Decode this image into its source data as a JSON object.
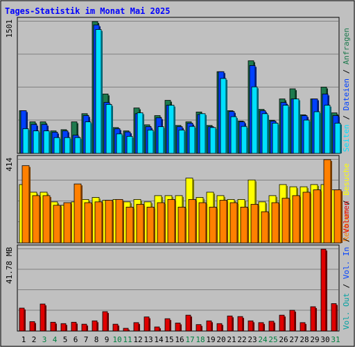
{
  "chart_data": {
    "type": "bar",
    "title": "Tages-Statistik im Monat Mai 2025",
    "days": [
      "1",
      "2",
      "3",
      "4",
      "5",
      "6",
      "7",
      "8",
      "9",
      "10",
      "11",
      "12",
      "13",
      "14",
      "15",
      "16",
      "17",
      "18",
      "19",
      "20",
      "21",
      "22",
      "23",
      "24",
      "25",
      "26",
      "27",
      "28",
      "29",
      "30",
      "31"
    ],
    "weekend_days": [
      "3",
      "4",
      "10",
      "11",
      "17",
      "18",
      "24",
      "25",
      "31"
    ],
    "panels": [
      {
        "id": "requests",
        "ylim": [
          0,
          1501
        ],
        "max_label": "1501",
        "legend": [
          {
            "text": "Anfragen",
            "color": "#1e7a4e"
          },
          {
            "text": "Dateien",
            "color": "#0040ff"
          },
          {
            "text": "Seiten",
            "color": "#00e0ff"
          }
        ],
        "series": [
          {
            "name": "Anfragen",
            "color": "#1e7a4e",
            "values": [
              486,
              359,
              359,
              256,
              270,
              359,
              452,
              1501,
              676,
              294,
              256,
              517,
              325,
              430,
              604,
              318,
              359,
              471,
              318,
              930,
              486,
              367,
              1054,
              501,
              377,
              620,
              735,
              439,
              620,
              755,
              461
            ]
          },
          {
            "name": "Dateien",
            "color": "#0040ff",
            "values": [
              486,
              330,
              330,
              241,
              256,
              207,
              430,
              1462,
              580,
              281,
              244,
              452,
              304,
              405,
              548,
              304,
              344,
              443,
              304,
              930,
              477,
              359,
              1000,
              486,
              367,
              580,
              620,
              430,
              620,
              676,
              430
            ]
          },
          {
            "name": "Seiten",
            "color": "#00e0ff",
            "values": [
              281,
              256,
              256,
              180,
              180,
              180,
              359,
              1410,
              557,
              222,
              194,
              462,
              266,
              304,
              548,
              266,
              307,
              452,
              294,
              853,
              418,
              307,
              757,
              452,
              344,
              548,
              620,
              379,
              474,
              548,
              344
            ]
          }
        ]
      },
      {
        "id": "visits",
        "ylim": [
          0,
          414
        ],
        "max_label": "414",
        "legend": [
          {
            "text": "Besuche",
            "color": "#ffff00"
          },
          {
            "text": "Rechner",
            "color": "#ff8000"
          }
        ],
        "series": [
          {
            "name": "Besuche",
            "color": "#ffff00",
            "values": [
              290,
              252,
              252,
              204,
              187,
              204,
              216,
              226,
              212,
              216,
              204,
              216,
              204,
              235,
              235,
              235,
              322,
              226,
              252,
              235,
              216,
              216,
              313,
              204,
              235,
              290,
              279,
              279,
              290,
              290,
              264
            ]
          },
          {
            "name": "Rechner",
            "color": "#ff8000",
            "values": [
              384,
              235,
              235,
              187,
              200,
              293,
              200,
              204,
              212,
              216,
              178,
              192,
              178,
              200,
              216,
              178,
              216,
              200,
              178,
              212,
              200,
              178,
              192,
              155,
              200,
              222,
              235,
              252,
              264,
              414,
              264
            ]
          }
        ]
      },
      {
        "id": "volume",
        "ylim": [
          0,
          41.78
        ],
        "max_label": "41.78 MB",
        "legend": [
          {
            "text": "Volumen",
            "color": "#e00000"
          },
          {
            "text": "Vol. In",
            "color": "#0040ff"
          },
          {
            "text": "Vol. Out",
            "color": "#00a0a0"
          }
        ],
        "series": [
          {
            "name": "Volumen",
            "color": "#e00000",
            "values": [
              11.7,
              4.8,
              13.8,
              4.5,
              3.8,
              4.5,
              3.5,
              5.2,
              9.9,
              3.5,
              1.4,
              4.3,
              7.2,
              2.1,
              6.3,
              4.1,
              8.1,
              3.3,
              5.2,
              3.8,
              7.7,
              7.4,
              5.2,
              4.3,
              5.0,
              8.1,
              10.6,
              4.3,
              12.4,
              41.78,
              14.0
            ]
          }
        ]
      }
    ]
  }
}
